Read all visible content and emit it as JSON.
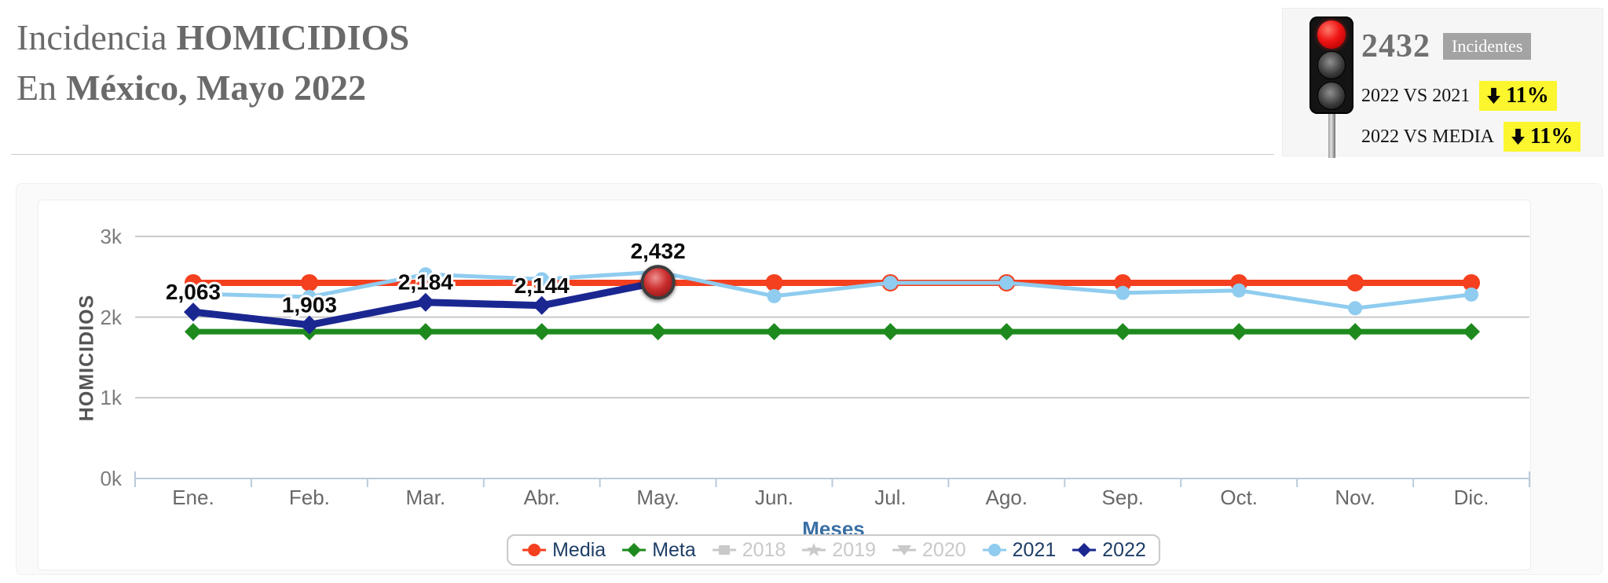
{
  "header": {
    "title_line1_regular": "Incidencia",
    "title_line1_bold": "HOMICIDIOS",
    "title_line2_regular": "En",
    "title_line2_bold": "México, Mayo 2022"
  },
  "status_panel": {
    "traffic_light_state": "red",
    "incidents_value": "2432",
    "incidents_label": "Incidentes",
    "highlight_color": "#FBF62E",
    "comparisons": [
      {
        "label": "2022 VS 2021",
        "direction": "down",
        "value": "11%"
      },
      {
        "label": "2022 VS MEDIA",
        "direction": "down",
        "value": "11%"
      }
    ]
  },
  "chart_data": {
    "type": "line",
    "title": "",
    "xlabel": "Meses",
    "ylabel": "HOMICIDIOS",
    "ylim": [
      0,
      3000
    ],
    "ytick_labels": [
      "0k",
      "1k",
      "2k",
      "3k"
    ],
    "grid": true,
    "legend_position": "bottom",
    "categories": [
      "Ene.",
      "Feb.",
      "Mar.",
      "Abr.",
      "May.",
      "Jun.",
      "Jul.",
      "Ago.",
      "Sep.",
      "Oct.",
      "Nov.",
      "Dic."
    ],
    "series": [
      {
        "name": "Media",
        "marker": "circle",
        "color": "#f4401f",
        "disabled": false,
        "values": [
          2425,
          2425,
          2425,
          2425,
          2425,
          2425,
          2425,
          2425,
          2425,
          2425,
          2425,
          2425
        ]
      },
      {
        "name": "Meta",
        "marker": "diamond",
        "color": "#1e8a1e",
        "disabled": false,
        "values": [
          1820,
          1820,
          1820,
          1820,
          1820,
          1820,
          1820,
          1820,
          1820,
          1820,
          1820,
          1820
        ]
      },
      {
        "name": "2018",
        "marker": "square",
        "color": "#c9c9c9",
        "disabled": true,
        "values": []
      },
      {
        "name": "2019",
        "marker": "star",
        "color": "#c9c9c9",
        "disabled": true,
        "values": []
      },
      {
        "name": "2020",
        "marker": "triangle-down",
        "color": "#c9c9c9",
        "disabled": true,
        "values": []
      },
      {
        "name": "2021",
        "marker": "circle",
        "color": "#8fccef",
        "disabled": false,
        "values": [
          2290,
          2250,
          2530,
          2470,
          2560,
          2260,
          2425,
          2425,
          2300,
          2330,
          2110,
          2280
        ]
      },
      {
        "name": "2022",
        "marker": "diamond",
        "color": "#1b2791",
        "disabled": false,
        "values": [
          2063,
          1903,
          2184,
          2144,
          2432
        ]
      }
    ],
    "point_labels": [
      "2,063",
      "1,903",
      "2,184",
      "2,144",
      "2,432"
    ],
    "current_point": {
      "series": "2022",
      "category": "May.",
      "value": 2432,
      "marker": "red-ball"
    }
  }
}
